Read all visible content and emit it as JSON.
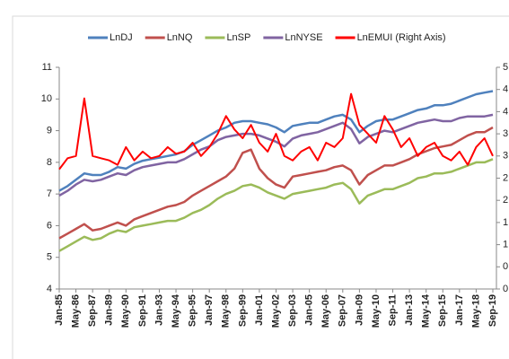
{
  "chart_data": {
    "type": "line",
    "categories": [
      "Jan-85",
      null,
      "May-86",
      null,
      "Sep-87",
      null,
      "Jan-89",
      null,
      "May-90",
      null,
      "Sep-91",
      null,
      "Jan-93",
      null,
      "May-94",
      null,
      "Sep-95",
      null,
      "Jan-97",
      null,
      "May-98",
      null,
      "Sep-99",
      null,
      "Jan-01",
      null,
      "May-02",
      null,
      "Sep-03",
      null,
      "Jan-05",
      null,
      "May-06",
      null,
      "Sep-07",
      null,
      "Jan-09",
      null,
      "May-10",
      null,
      "Sep-11",
      null,
      "Jan-13",
      null,
      "May-14",
      null,
      "Sep-15",
      null,
      "Jan-17",
      null,
      "May-18",
      null,
      "Sep-19"
    ],
    "series": [
      {
        "name": "LnDJ",
        "color": "#4f81bd",
        "values": [
          7.1,
          7.25,
          7.45,
          7.65,
          7.6,
          7.6,
          7.7,
          7.85,
          7.8,
          7.95,
          8.05,
          8.1,
          8.15,
          8.2,
          8.25,
          8.35,
          8.55,
          8.7,
          8.85,
          9.0,
          9.1,
          9.25,
          9.3,
          9.3,
          9.25,
          9.2,
          9.1,
          8.95,
          9.15,
          9.2,
          9.25,
          9.25,
          9.35,
          9.45,
          9.5,
          9.35,
          8.95,
          9.15,
          9.3,
          9.35,
          9.35,
          9.45,
          9.55,
          9.65,
          9.7,
          9.8,
          9.8,
          9.85,
          9.95,
          10.05,
          10.15,
          10.2,
          10.25
        ]
      },
      {
        "name": "LnNQ",
        "color": "#c0504d",
        "values": [
          5.6,
          5.75,
          5.9,
          6.05,
          5.85,
          5.9,
          6.0,
          6.1,
          6.0,
          6.2,
          6.3,
          6.4,
          6.5,
          6.6,
          6.65,
          6.75,
          6.95,
          7.1,
          7.25,
          7.4,
          7.55,
          7.8,
          8.3,
          8.4,
          7.8,
          7.5,
          7.3,
          7.2,
          7.55,
          7.6,
          7.65,
          7.7,
          7.75,
          7.85,
          7.9,
          7.75,
          7.3,
          7.6,
          7.75,
          7.9,
          7.9,
          8.0,
          8.1,
          8.25,
          8.35,
          8.45,
          8.5,
          8.55,
          8.7,
          8.85,
          8.95,
          8.95,
          9.1
        ]
      },
      {
        "name": "LnSP",
        "color": "#9bbb59",
        "values": [
          5.2,
          5.35,
          5.5,
          5.65,
          5.55,
          5.6,
          5.75,
          5.85,
          5.8,
          5.95,
          6.0,
          6.05,
          6.1,
          6.15,
          6.15,
          6.25,
          6.4,
          6.5,
          6.65,
          6.85,
          7.0,
          7.1,
          7.25,
          7.3,
          7.2,
          7.05,
          6.95,
          6.85,
          7.0,
          7.05,
          7.1,
          7.15,
          7.2,
          7.3,
          7.35,
          7.15,
          6.7,
          6.95,
          7.05,
          7.15,
          7.15,
          7.25,
          7.35,
          7.5,
          7.55,
          7.65,
          7.65,
          7.7,
          7.8,
          7.9,
          8.0,
          8.0,
          8.1
        ]
      },
      {
        "name": "LnNYSE",
        "color": "#8064a2",
        "values": [
          6.95,
          7.1,
          7.3,
          7.45,
          7.4,
          7.45,
          7.55,
          7.65,
          7.6,
          7.75,
          7.85,
          7.9,
          7.95,
          8.0,
          8.0,
          8.1,
          8.25,
          8.4,
          8.5,
          8.7,
          8.8,
          8.85,
          8.9,
          8.9,
          8.85,
          8.75,
          8.65,
          8.5,
          8.75,
          8.85,
          8.9,
          8.95,
          9.05,
          9.15,
          9.25,
          9.05,
          8.6,
          8.8,
          8.9,
          9.0,
          8.95,
          9.05,
          9.15,
          9.25,
          9.3,
          9.35,
          9.3,
          9.3,
          9.4,
          9.45,
          9.45,
          9.45,
          9.5
        ]
      },
      {
        "name": "LnEMUI (Right Axis)",
        "color": "#ff0000",
        "axis": "y2",
        "values": [
          2.7,
          2.95,
          3.0,
          4.3,
          3.0,
          2.95,
          2.9,
          2.8,
          3.2,
          2.9,
          3.1,
          2.95,
          3.0,
          3.2,
          3.05,
          3.1,
          3.3,
          3.0,
          3.2,
          3.5,
          3.9,
          3.6,
          3.4,
          3.7,
          3.3,
          3.1,
          3.5,
          3.0,
          2.9,
          3.1,
          3.2,
          2.9,
          3.3,
          3.2,
          3.4,
          4.4,
          3.7,
          3.5,
          3.3,
          3.9,
          3.6,
          3.2,
          3.4,
          3.0,
          3.2,
          3.3,
          3.0,
          2.9,
          3.1,
          2.8,
          3.2,
          3.4,
          3.0
        ]
      }
    ],
    "ylim": [
      4,
      11
    ],
    "yticks": [
      4,
      5,
      6,
      7,
      8,
      9,
      10,
      11
    ],
    "y2lim": [
      0,
      5
    ],
    "y2ticks": [
      0,
      0.5,
      1,
      1.5,
      2,
      2.5,
      3,
      3.5,
      4,
      4.5,
      5
    ],
    "legend": "top"
  }
}
